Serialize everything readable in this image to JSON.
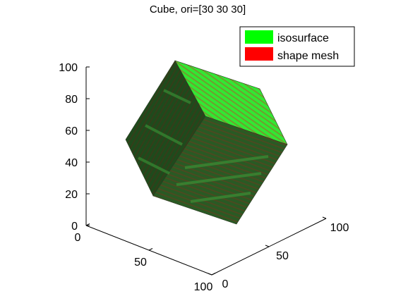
{
  "chart_data": {
    "type": "surface3d",
    "title": "Cube, ori=[30 30 30]",
    "view": {
      "azimuth": 30,
      "elevation": 30
    },
    "axes": {
      "x": {
        "ticks": [
          0,
          50,
          100
        ],
        "range": [
          0,
          100
        ],
        "label": ""
      },
      "y": {
        "ticks": [
          0,
          50,
          100
        ],
        "range": [
          0,
          100
        ],
        "label": ""
      },
      "z": {
        "ticks": [
          0,
          20,
          40,
          60,
          80,
          100
        ],
        "range": [
          0,
          100
        ],
        "label": ""
      }
    },
    "grid": false,
    "legend": {
      "placement": "top-right",
      "entries": [
        {
          "name": "isosurface",
          "color": "#00ff00"
        },
        {
          "name": "shape mesh",
          "color": "#ff0000"
        }
      ]
    },
    "object": {
      "shape": "cube",
      "orientation": [
        30,
        30,
        30
      ],
      "face_colors": {
        "top": "#33e633",
        "left": "#1f4a1c",
        "right": "#2a5a24"
      }
    }
  }
}
